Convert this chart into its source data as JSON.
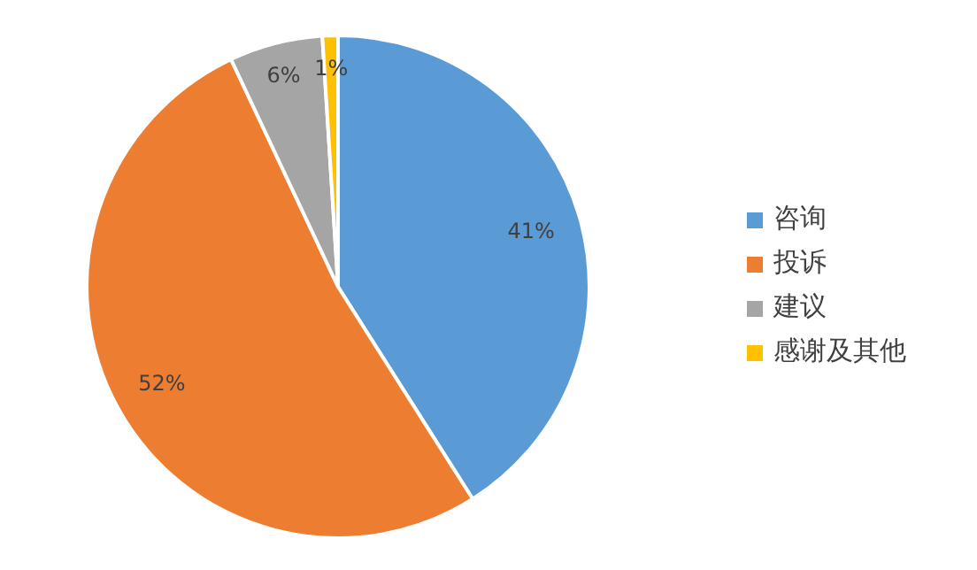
{
  "chart_data": {
    "type": "pie",
    "categories": [
      "咨询",
      "投诉",
      "建议",
      "感谢及其他"
    ],
    "values": [
      41,
      52,
      6,
      1
    ],
    "colors": [
      "#5b9bd5",
      "#ed7d31",
      "#a5a5a5",
      "#ffc000"
    ],
    "value_labels": [
      "41%",
      "52%",
      "6%",
      "1%"
    ],
    "legend": "right"
  }
}
